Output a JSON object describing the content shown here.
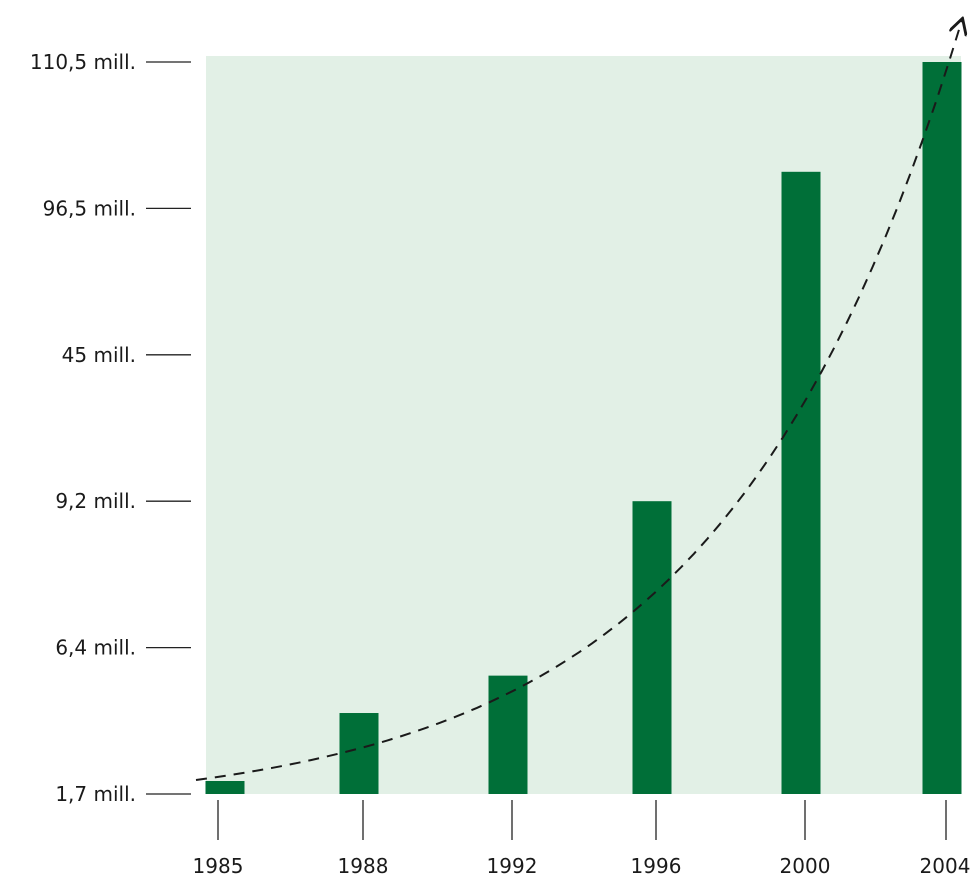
{
  "colors": {
    "plot_background": "#e2f0e6",
    "bar": "#006f38",
    "axis_line": "#222222",
    "trend_line": "#1a1a1a"
  },
  "chart_data": {
    "type": "bar",
    "categories": [
      "1985",
      "1988",
      "1992",
      "1996",
      "2000",
      "2004"
    ],
    "y_tick_labels": [
      "1,7 mill.",
      "6,4 mill.",
      "9,2 mill.",
      "45 mill.",
      "96,5 mill.",
      "110,5 mill."
    ],
    "y_scale": "ordinal (tick labels evenly spaced, not proportional to value)",
    "values": [
      1.7,
      4.3,
      5.5,
      9.2,
      100.0,
      110.5
    ],
    "value_unit": "mill.",
    "title": "",
    "xlabel": "",
    "ylabel": "",
    "trend_line": {
      "style": "dashed",
      "shape": "exponential-like curve",
      "arrow_end": true
    },
    "grid": false,
    "legend": "none"
  }
}
